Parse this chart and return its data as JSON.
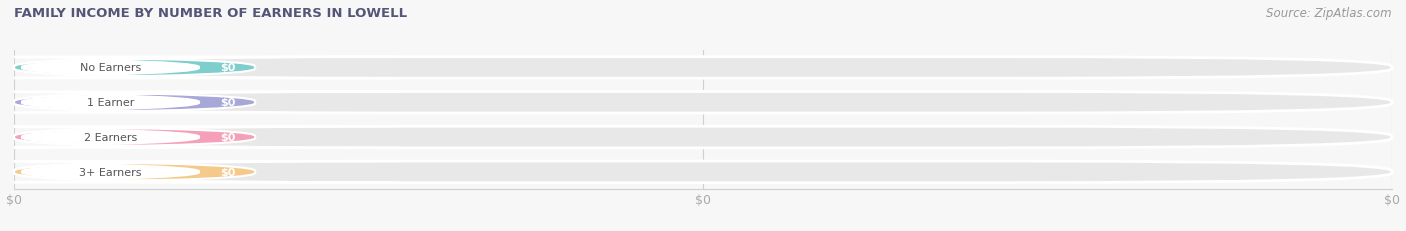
{
  "title": "FAMILY INCOME BY NUMBER OF EARNERS IN LOWELL",
  "title_color": "#555577",
  "title_fontsize": 9.5,
  "source_text": "Source: ZipAtlas.com",
  "categories": [
    "No Earners",
    "1 Earner",
    "2 Earners",
    "3+ Earners"
  ],
  "values": [
    0,
    0,
    0,
    0
  ],
  "bar_colors": [
    "#7ecece",
    "#a8a8d8",
    "#f4a0b8",
    "#f5c98a"
  ],
  "value_labels": [
    "$0",
    "$0",
    "$0",
    "$0"
  ],
  "background_color": "#f7f7f7",
  "bar_bg_color": "#e8e8e8",
  "white_pill_color": "#ffffff",
  "label_text_color": "#555555",
  "value_text_color": "#ffffff",
  "tick_label_color": "#aaaaaa",
  "tick_fontsize": 9,
  "source_fontsize": 8.5,
  "source_color": "#999999",
  "grid_color": "#d0d0d0"
}
